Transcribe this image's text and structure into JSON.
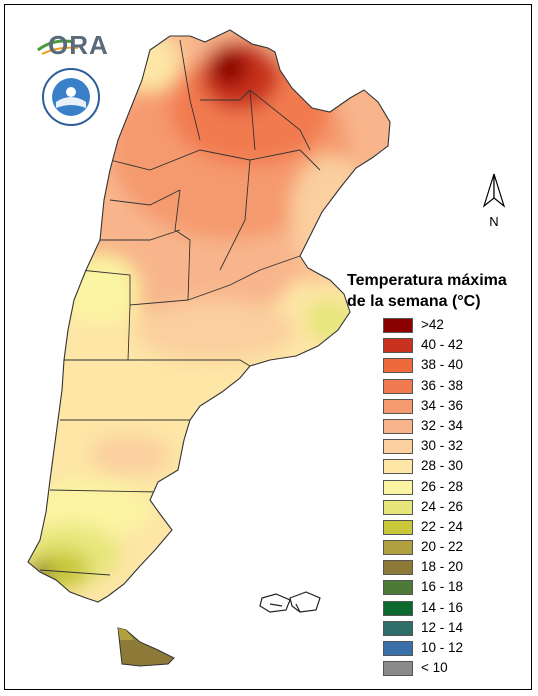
{
  "legend": {
    "title_line1": "Temperatura máxima",
    "title_line2": "de la semana (°C)",
    "items": [
      {
        "label": ">42",
        "color": "#8b0000"
      },
      {
        "label": "40 - 42",
        "color": "#c8321e"
      },
      {
        "label": "38 - 40",
        "color": "#ee6a3a"
      },
      {
        "label": "36 - 38",
        "color": "#f27a50"
      },
      {
        "label": "34 - 36",
        "color": "#f59a6e"
      },
      {
        "label": "32 - 34",
        "color": "#f8b58b"
      },
      {
        "label": "30 - 32",
        "color": "#fbcf9e"
      },
      {
        "label": "28 - 30",
        "color": "#fde6a6"
      },
      {
        "label": "26 - 28",
        "color": "#fbf4a2"
      },
      {
        "label": "24 - 26",
        "color": "#e6e67a"
      },
      {
        "label": "22 - 24",
        "color": "#c8c83a"
      },
      {
        "label": "20 - 22",
        "color": "#b0a040"
      },
      {
        "label": "18 - 20",
        "color": "#8e7a38"
      },
      {
        "label": "16 - 18",
        "color": "#4e7a38"
      },
      {
        "label": "14 - 16",
        "color": "#0d6a2e"
      },
      {
        "label": "12 - 14",
        "color": "#2f6f6a"
      },
      {
        "label": "10 - 12",
        "color": "#3a6fa8"
      },
      {
        "label": "< 10",
        "color": "#8a8a8a"
      }
    ]
  },
  "logo": {
    "text": "ORA"
  },
  "compass": {
    "label": "N"
  }
}
